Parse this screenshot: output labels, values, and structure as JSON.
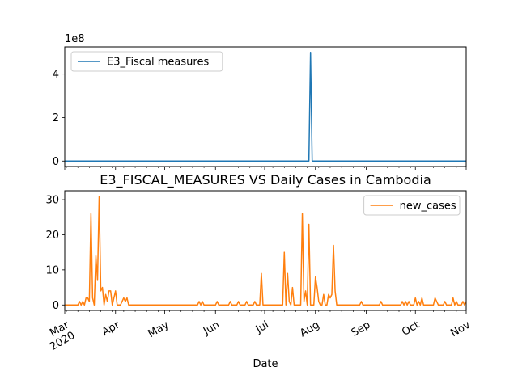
{
  "chart_data": [
    {
      "type": "line",
      "title": "",
      "xlabel": "",
      "ylabel": "",
      "offset_label": "1e8",
      "ylim": [
        -0.25,
        5.25
      ],
      "yticks": [
        0,
        2,
        4
      ],
      "xlim": [
        "2020-03-01",
        "2020-11-01"
      ],
      "legend": "top-left",
      "series": [
        {
          "name": "E3_Fiscal measures",
          "color": "#1f77b4",
          "points": [
            [
              "2020-03-01",
              0
            ],
            [
              "2020-03-28",
              0
            ],
            [
              "2020-07-28",
              0
            ],
            [
              "2020-07-29",
              5
            ],
            [
              "2020-07-30",
              0
            ],
            [
              "2020-11-01",
              0
            ]
          ]
        }
      ]
    },
    {
      "type": "line",
      "title": "E3_FISCAL_MEASURES VS Daily Cases in Cambodia",
      "xlabel": "Date",
      "ylabel": "",
      "ylim": [
        -1.55,
        32.55
      ],
      "yticks": [
        0,
        10,
        20,
        30
      ],
      "xlim": [
        "2020-03-01",
        "2020-11-01"
      ],
      "legend": "top-right",
      "xticks": [
        {
          "date": "2020-03-01",
          "label": "Mar",
          "year": "2020"
        },
        {
          "date": "2020-04-01",
          "label": "Apr",
          "year": ""
        },
        {
          "date": "2020-05-01",
          "label": "May",
          "year": ""
        },
        {
          "date": "2020-06-01",
          "label": "Jun",
          "year": ""
        },
        {
          "date": "2020-07-01",
          "label": "Jul",
          "year": ""
        },
        {
          "date": "2020-08-01",
          "label": "Aug",
          "year": ""
        },
        {
          "date": "2020-09-01",
          "label": "Sep",
          "year": ""
        },
        {
          "date": "2020-10-01",
          "label": "Oct",
          "year": ""
        },
        {
          "date": "2020-11-01",
          "label": "Nov",
          "year": ""
        }
      ],
      "series": [
        {
          "name": "new_cases",
          "color": "#ff7f0e",
          "points": [
            [
              "2020-03-01",
              0
            ],
            [
              "2020-03-09",
              0
            ],
            [
              "2020-03-10",
              1
            ],
            [
              "2020-03-11",
              0
            ],
            [
              "2020-03-12",
              1
            ],
            [
              "2020-03-13",
              0
            ],
            [
              "2020-03-14",
              2
            ],
            [
              "2020-03-15",
              2
            ],
            [
              "2020-03-16",
              1
            ],
            [
              "2020-03-17",
              26
            ],
            [
              "2020-03-18",
              2
            ],
            [
              "2020-03-19",
              0
            ],
            [
              "2020-03-20",
              14
            ],
            [
              "2020-03-21",
              7
            ],
            [
              "2020-03-22",
              31
            ],
            [
              "2020-03-23",
              4
            ],
            [
              "2020-03-24",
              5
            ],
            [
              "2020-03-25",
              0
            ],
            [
              "2020-03-26",
              3
            ],
            [
              "2020-03-27",
              1
            ],
            [
              "2020-03-28",
              4
            ],
            [
              "2020-03-29",
              4
            ],
            [
              "2020-03-30",
              0
            ],
            [
              "2020-03-31",
              2
            ],
            [
              "2020-04-01",
              4
            ],
            [
              "2020-04-02",
              0
            ],
            [
              "2020-04-03",
              0
            ],
            [
              "2020-04-04",
              0
            ],
            [
              "2020-04-05",
              1
            ],
            [
              "2020-04-06",
              2
            ],
            [
              "2020-04-07",
              1
            ],
            [
              "2020-04-08",
              2
            ],
            [
              "2020-04-09",
              0
            ],
            [
              "2020-05-21",
              0
            ],
            [
              "2020-05-22",
              1
            ],
            [
              "2020-05-23",
              0
            ],
            [
              "2020-05-24",
              1
            ],
            [
              "2020-05-25",
              0
            ],
            [
              "2020-06-01",
              0
            ],
            [
              "2020-06-02",
              1
            ],
            [
              "2020-06-03",
              0
            ],
            [
              "2020-06-09",
              0
            ],
            [
              "2020-06-10",
              1
            ],
            [
              "2020-06-11",
              0
            ],
            [
              "2020-06-14",
              0
            ],
            [
              "2020-06-15",
              1
            ],
            [
              "2020-06-16",
              0
            ],
            [
              "2020-06-19",
              0
            ],
            [
              "2020-06-20",
              1
            ],
            [
              "2020-06-21",
              0
            ],
            [
              "2020-06-24",
              0
            ],
            [
              "2020-06-25",
              1
            ],
            [
              "2020-06-26",
              0
            ],
            [
              "2020-06-28",
              0
            ],
            [
              "2020-06-29",
              9
            ],
            [
              "2020-06-30",
              0
            ],
            [
              "2020-07-12",
              0
            ],
            [
              "2020-07-13",
              15
            ],
            [
              "2020-07-14",
              0
            ],
            [
              "2020-07-15",
              9
            ],
            [
              "2020-07-16",
              1
            ],
            [
              "2020-07-17",
              0
            ],
            [
              "2020-07-18",
              5
            ],
            [
              "2020-07-19",
              0
            ],
            [
              "2020-07-23",
              0
            ],
            [
              "2020-07-24",
              26
            ],
            [
              "2020-07-25",
              1
            ],
            [
              "2020-07-26",
              4
            ],
            [
              "2020-07-27",
              0
            ],
            [
              "2020-07-28",
              23
            ],
            [
              "2020-07-29",
              0
            ],
            [
              "2020-07-31",
              0
            ],
            [
              "2020-08-01",
              8
            ],
            [
              "2020-08-02",
              5
            ],
            [
              "2020-08-03",
              1
            ],
            [
              "2020-08-04",
              0
            ],
            [
              "2020-08-05",
              0
            ],
            [
              "2020-08-06",
              3
            ],
            [
              "2020-08-07",
              0
            ],
            [
              "2020-08-08",
              0
            ],
            [
              "2020-08-09",
              3
            ],
            [
              "2020-08-10",
              2
            ],
            [
              "2020-08-11",
              3
            ],
            [
              "2020-08-12",
              17
            ],
            [
              "2020-08-13",
              4
            ],
            [
              "2020-08-14",
              0
            ],
            [
              "2020-08-28",
              0
            ],
            [
              "2020-08-29",
              1
            ],
            [
              "2020-08-30",
              0
            ],
            [
              "2020-09-09",
              0
            ],
            [
              "2020-09-10",
              1
            ],
            [
              "2020-09-11",
              0
            ],
            [
              "2020-09-22",
              0
            ],
            [
              "2020-09-23",
              1
            ],
            [
              "2020-09-24",
              0
            ],
            [
              "2020-09-25",
              1
            ],
            [
              "2020-09-26",
              0
            ],
            [
              "2020-09-27",
              1
            ],
            [
              "2020-09-28",
              0
            ],
            [
              "2020-09-30",
              0
            ],
            [
              "2020-10-01",
              2
            ],
            [
              "2020-10-02",
              0
            ],
            [
              "2020-10-03",
              1
            ],
            [
              "2020-10-04",
              0
            ],
            [
              "2020-10-05",
              2
            ],
            [
              "2020-10-06",
              0
            ],
            [
              "2020-10-12",
              0
            ],
            [
              "2020-10-13",
              2
            ],
            [
              "2020-10-14",
              1
            ],
            [
              "2020-10-15",
              0
            ],
            [
              "2020-10-18",
              0
            ],
            [
              "2020-10-19",
              1
            ],
            [
              "2020-10-20",
              0
            ],
            [
              "2020-10-23",
              0
            ],
            [
              "2020-10-24",
              2
            ],
            [
              "2020-10-25",
              0
            ],
            [
              "2020-10-26",
              1
            ],
            [
              "2020-10-27",
              0
            ],
            [
              "2020-10-29",
              0
            ],
            [
              "2020-10-30",
              1
            ],
            [
              "2020-10-31",
              0
            ],
            [
              "2020-11-01",
              1
            ]
          ]
        }
      ]
    }
  ]
}
